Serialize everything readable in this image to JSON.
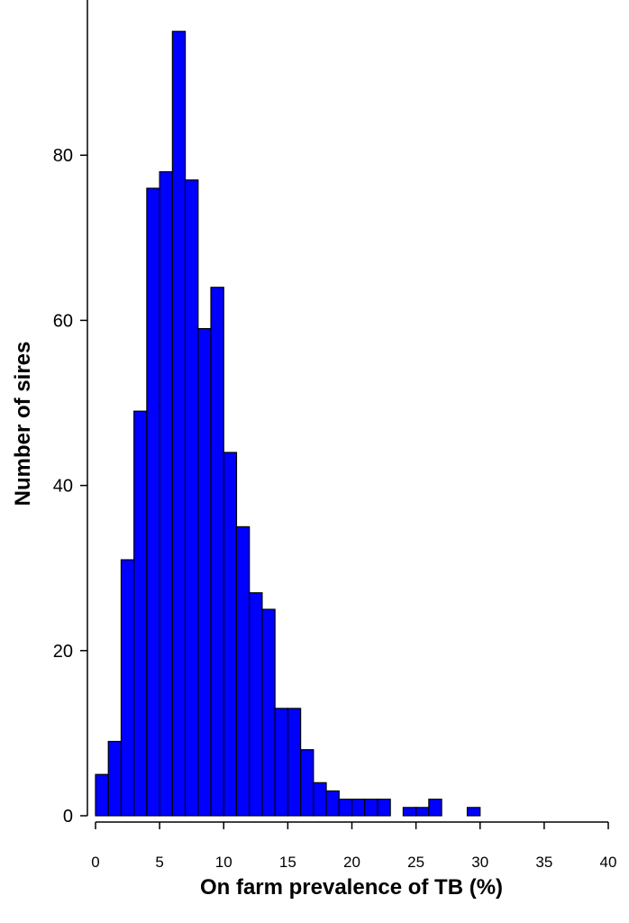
{
  "chart_data": {
    "type": "histogram",
    "xlabel": "On farm prevalence of TB (%)",
    "ylabel": "Number of sires",
    "bins": [
      0,
      1,
      2,
      3,
      4,
      5,
      6,
      7,
      8,
      9,
      10,
      11,
      12,
      13,
      14,
      15,
      16,
      17,
      18,
      19,
      20,
      21,
      22,
      23,
      24,
      25,
      26,
      27,
      28,
      29,
      30
    ],
    "values": [
      5,
      9,
      31,
      49,
      76,
      78,
      95,
      77,
      59,
      64,
      44,
      35,
      27,
      25,
      13,
      13,
      8,
      4,
      3,
      2,
      2,
      2,
      2,
      0,
      1,
      1,
      2,
      0,
      0,
      1
    ],
    "color": "#0000ff",
    "xlim": [
      0,
      40
    ],
    "xticks": [
      0,
      5,
      10,
      15,
      20,
      25,
      30,
      35,
      40
    ],
    "ylim": [
      0,
      98.8
    ],
    "yticks": [
      0,
      20,
      40,
      60,
      80
    ]
  }
}
